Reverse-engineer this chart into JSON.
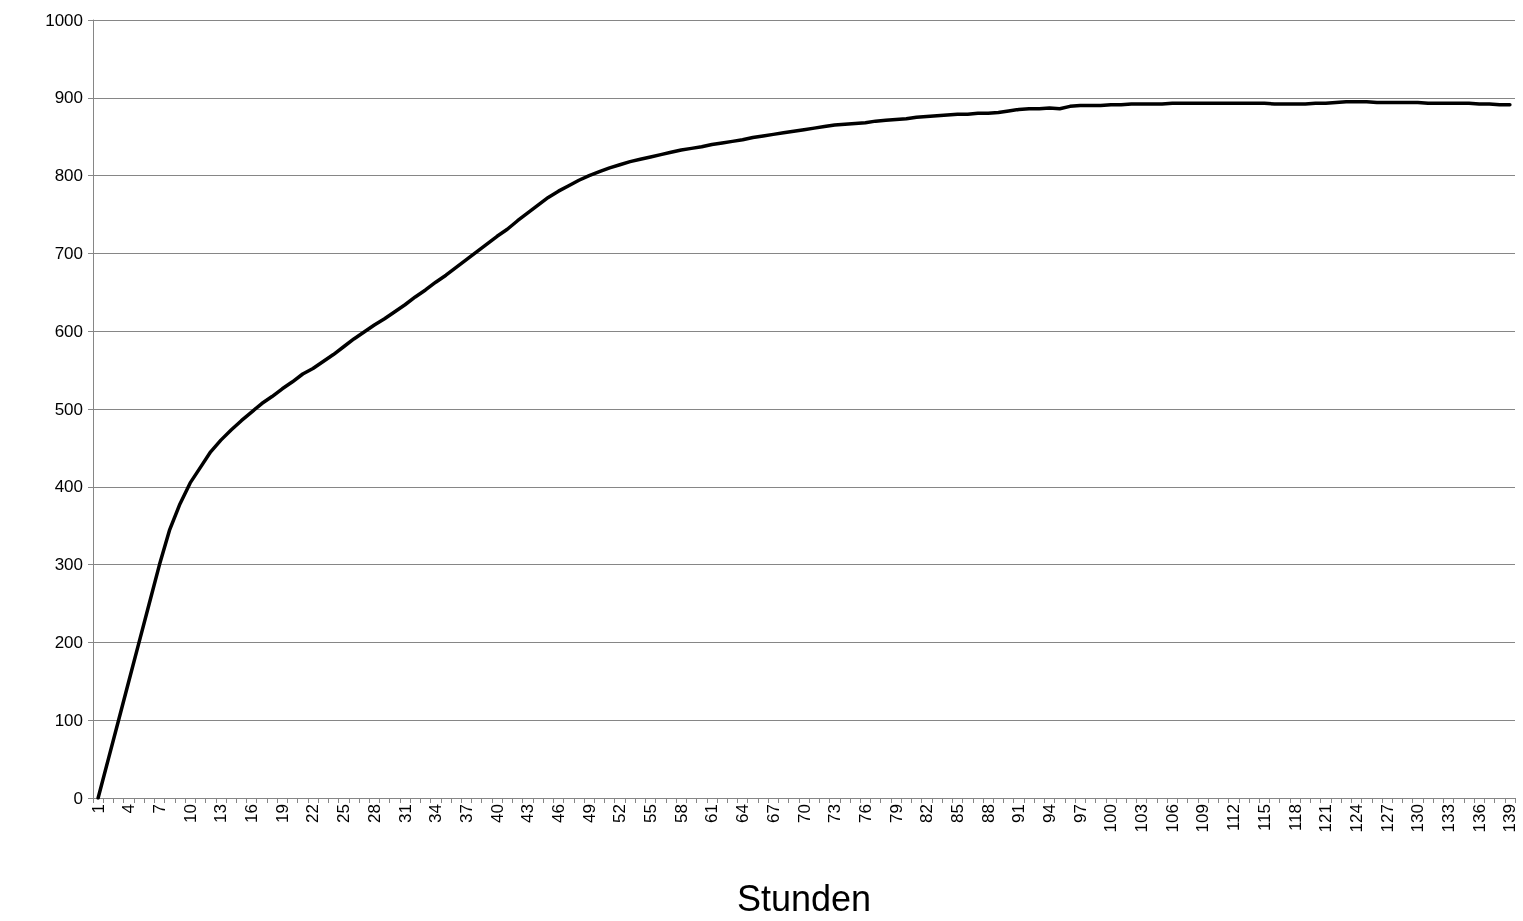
{
  "chart_data": {
    "type": "line",
    "xlabel": "Stunden",
    "categories": [
      "1",
      null,
      null,
      "4",
      null,
      null,
      "7",
      null,
      null,
      "10",
      null,
      null,
      "13",
      null,
      null,
      "16",
      null,
      null,
      "19",
      null,
      null,
      "22",
      null,
      null,
      "25",
      null,
      null,
      "28",
      null,
      null,
      "31",
      null,
      null,
      "34",
      null,
      null,
      "37",
      null,
      null,
      "40",
      null,
      null,
      "43",
      null,
      null,
      "46",
      null,
      null,
      "49",
      null,
      null,
      "52",
      null,
      null,
      "55",
      null,
      null,
      "58",
      null,
      null,
      "61",
      null,
      null,
      "64",
      null,
      null,
      "67",
      null,
      null,
      "70",
      null,
      null,
      "73",
      null,
      null,
      "76",
      null,
      null,
      "79",
      null,
      null,
      "82",
      null,
      null,
      "85",
      null,
      null,
      "88",
      null,
      null,
      "91",
      null,
      null,
      "94",
      null,
      null,
      "97",
      null,
      null,
      "100",
      null,
      null,
      "103",
      null,
      null,
      "106",
      null,
      null,
      "109",
      null,
      null,
      "112",
      null,
      null,
      "115",
      null,
      null,
      "118",
      null,
      null,
      "121",
      null,
      null,
      "124",
      null,
      null,
      "127",
      null,
      null,
      "130",
      null,
      null,
      "133",
      null,
      null,
      "136",
      null,
      null,
      "139"
    ],
    "series": [
      {
        "color": "#000000",
        "values": [
          0,
          50,
          100,
          150,
          200,
          250,
          300,
          345,
          378,
          405,
          425,
          445,
          460,
          473,
          485,
          496,
          507,
          516,
          526,
          535,
          545,
          552,
          561,
          570,
          580,
          590,
          599,
          608,
          616,
          625,
          634,
          644,
          653,
          663,
          672,
          682,
          692,
          702,
          712,
          722,
          731,
          742,
          752,
          762,
          772,
          780,
          787,
          794,
          800,
          805,
          810,
          814,
          818,
          821,
          824,
          827,
          830,
          833,
          835,
          837,
          840,
          842,
          844,
          846,
          849,
          851,
          853,
          855,
          857,
          859,
          861,
          863,
          865,
          866,
          867,
          868,
          870,
          871,
          872,
          873,
          875,
          876,
          877,
          878,
          879,
          879,
          880,
          880,
          881,
          883,
          885,
          886,
          886,
          887,
          886,
          889,
          890,
          890,
          890,
          891,
          891,
          892,
          892,
          892,
          892,
          893,
          893,
          893,
          893,
          893,
          893,
          893,
          893,
          893,
          893,
          892,
          892,
          892,
          892,
          893,
          893,
          894,
          895,
          895,
          895,
          894,
          894,
          894,
          894,
          894,
          893,
          893,
          893,
          893,
          893,
          892,
          892,
          891,
          891
        ]
      }
    ],
    "ylim": [
      0,
      1000
    ],
    "yticks": [
      0,
      100,
      200,
      300,
      400,
      500,
      600,
      700,
      800,
      900,
      1000
    ],
    "grid": "y",
    "marker": "none",
    "line_style": "solid"
  }
}
